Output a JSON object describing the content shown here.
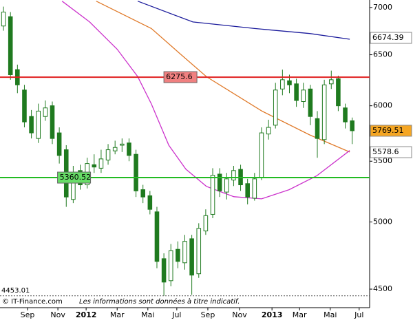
{
  "chart_data": {
    "type": "candlestick",
    "log_y": true,
    "ylim": [
      4371,
      7083
    ],
    "yticks": [
      4500,
      5000,
      5500,
      6000,
      6500,
      7000
    ],
    "xlim": [
      -4,
      102
    ],
    "xticks": [
      {
        "value": 3.9,
        "label": "Sep"
      },
      {
        "value": 12.6,
        "label": "Nov"
      },
      {
        "value": 20.7,
        "label": "2012"
      },
      {
        "value": 29.6,
        "label": "Mar"
      },
      {
        "value": 38.4,
        "label": "Mai"
      },
      {
        "value": 46.7,
        "label": "Jul"
      },
      {
        "value": 55.6,
        "label": "Sep"
      },
      {
        "value": 64.7,
        "label": "Nov"
      },
      {
        "value": 74.0,
        "label": "2013"
      },
      {
        "value": 81.9,
        "label": "Mar"
      },
      {
        "value": 90.7,
        "label": "Mai"
      },
      {
        "value": 99.0,
        "label": "Jul"
      }
    ],
    "up_color": "#ffffff",
    "down_color": "#1f7a1f",
    "candle_edge": "#1f7a1f",
    "x": [
      -3,
      -1,
      1,
      3,
      5,
      7,
      9,
      11,
      13,
      15,
      17,
      19,
      21,
      23,
      25,
      27,
      29,
      31,
      33,
      35,
      37,
      39,
      41,
      43,
      45,
      47,
      49,
      51,
      53,
      55,
      57,
      59,
      61,
      63,
      65,
      67,
      69,
      71,
      73,
      75,
      77,
      79,
      81,
      83,
      85,
      87,
      89,
      91,
      93,
      95,
      97
    ],
    "open": [
      6800,
      6900,
      6350,
      6150,
      5900,
      5700,
      5900,
      6000,
      5750,
      5600,
      5180,
      5420,
      5300,
      5470,
      5440,
      5510,
      5590,
      5640,
      5660,
      5560,
      5260,
      5210,
      5080,
      4720,
      4560,
      4790,
      4690,
      4870,
      4610,
      4930,
      5060,
      5390,
      5240,
      5340,
      5430,
      5310,
      5190,
      5360,
      5740,
      5820,
      6160,
      6240,
      6210,
      6040,
      6160,
      5880,
      5690,
      6210,
      6260,
      5980,
      5860
    ],
    "high": [
      7010,
      6950,
      6400,
      6200,
      5960,
      6020,
      6050,
      6040,
      5800,
      5640,
      5460,
      5470,
      5530,
      5560,
      5600,
      5650,
      5680,
      5700,
      5700,
      5600,
      5300,
      5250,
      5120,
      4760,
      4830,
      4850,
      4900,
      4900,
      4990,
      5100,
      5440,
      5440,
      5400,
      5460,
      5470,
      5350,
      5400,
      5800,
      5870,
      6220,
      6350,
      6300,
      6260,
      6220,
      6200,
      5950,
      6250,
      6340,
      6290,
      6020,
      5890
    ],
    "low": [
      6750,
      6250,
      6120,
      5800,
      5700,
      5660,
      5860,
      5650,
      5480,
      5120,
      5150,
      5260,
      5270,
      5400,
      5400,
      5470,
      5560,
      5580,
      5500,
      5200,
      5150,
      5060,
      4650,
      4453.01,
      4520,
      4650,
      4640,
      4460,
      4580,
      4900,
      5030,
      5200,
      5180,
      5290,
      5250,
      5140,
      5170,
      5340,
      5690,
      5790,
      6100,
      6120,
      5990,
      5980,
      5820,
      5530,
      5650,
      6160,
      5950,
      5790,
      5650
    ],
    "close": [
      6950,
      6300,
      6200,
      5850,
      5750,
      5950,
      5980,
      5700,
      5550,
      5200,
      5400,
      5300,
      5480,
      5450,
      5520,
      5600,
      5620,
      5650,
      5550,
      5250,
      5200,
      5100,
      4700,
      4550,
      4780,
      4700,
      4850,
      4600,
      4950,
      5050,
      5380,
      5250,
      5350,
      5420,
      5300,
      5200,
      5350,
      5750,
      5800,
      6150,
      6250,
      6200,
      6050,
      6150,
      5900,
      5700,
      6200,
      6250,
      6000,
      5850,
      5769.51
    ],
    "lines": [
      {
        "color": "#1c1c9c",
        "x": [
          35.5,
          51.3,
          69.0,
          84.8,
          96.3
        ],
        "values": [
          7070,
          6843,
          6773,
          6720,
          6660
        ]
      },
      {
        "color": "#e07a2a",
        "x": [
          23.6,
          39.4,
          47.3,
          55.2,
          71.0,
          84.8,
          96.3
        ],
        "values": [
          7070,
          6773,
          6521,
          6280,
          5952,
          5732,
          5580
        ]
      },
      {
        "color": "#cc33cc",
        "x": [
          13.8,
          21.7,
          29.6,
          35.5,
          39.4,
          44.4,
          49.3,
          55.2,
          63.1,
          71.0,
          78.9,
          86.8,
          96.3
        ],
        "values": [
          7070,
          6843,
          6557,
          6280,
          6017,
          5640,
          5432,
          5287,
          5202,
          5185,
          5260,
          5375,
          5593
        ]
      }
    ],
    "levels": [
      {
        "value": 6275.6,
        "color": "#e02020",
        "label_fill": "#f08080",
        "label_at": 43
      },
      {
        "value": 5360.52,
        "color": "#22bb22",
        "label_fill": "#66dd66",
        "label_at": 12.5
      },
      {
        "value": 4453.01,
        "color": "#555555",
        "dashed": true,
        "label_at": -4
      }
    ],
    "tags": [
      {
        "value": 6674.39,
        "text_color": "#1c1c9c",
        "fill": "#ffffff"
      },
      {
        "value": 5769.51,
        "text_color": "#000000",
        "fill": "#f5a623"
      },
      {
        "value": 5578.6,
        "text_color": "#e07a2a",
        "fill": "#ffffff"
      }
    ],
    "source": "© IT-Finance.com",
    "disclaimer": "Les informations sont données à titre indicatif."
  }
}
